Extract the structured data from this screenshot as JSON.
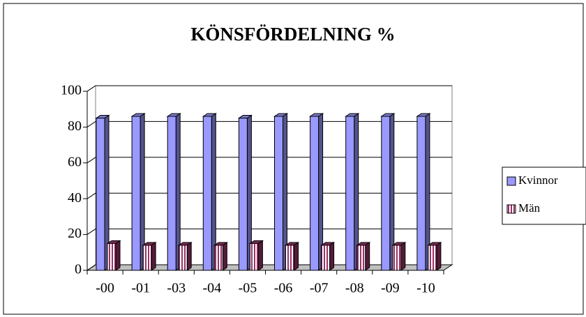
{
  "chart_data": {
    "type": "bar",
    "title": "KÖNSFÖRDELNING %",
    "categories": [
      "-00",
      "-01",
      "-03",
      "-04",
      "-05",
      "-06",
      "-07",
      "-08",
      "-09",
      "-10"
    ],
    "series": [
      {
        "name": "Kvinnor",
        "color": "#9999ff",
        "values": [
          85,
          86,
          86,
          86,
          85,
          86,
          86,
          86,
          86,
          86
        ]
      },
      {
        "name": "Män",
        "color": "#993366",
        "values": [
          15,
          14,
          14,
          14,
          15,
          14,
          14,
          14,
          14,
          14
        ]
      }
    ],
    "ylim": [
      0,
      100
    ],
    "yticks": [
      0,
      20,
      40,
      60,
      80,
      100
    ],
    "grid": true,
    "legend": "right"
  }
}
